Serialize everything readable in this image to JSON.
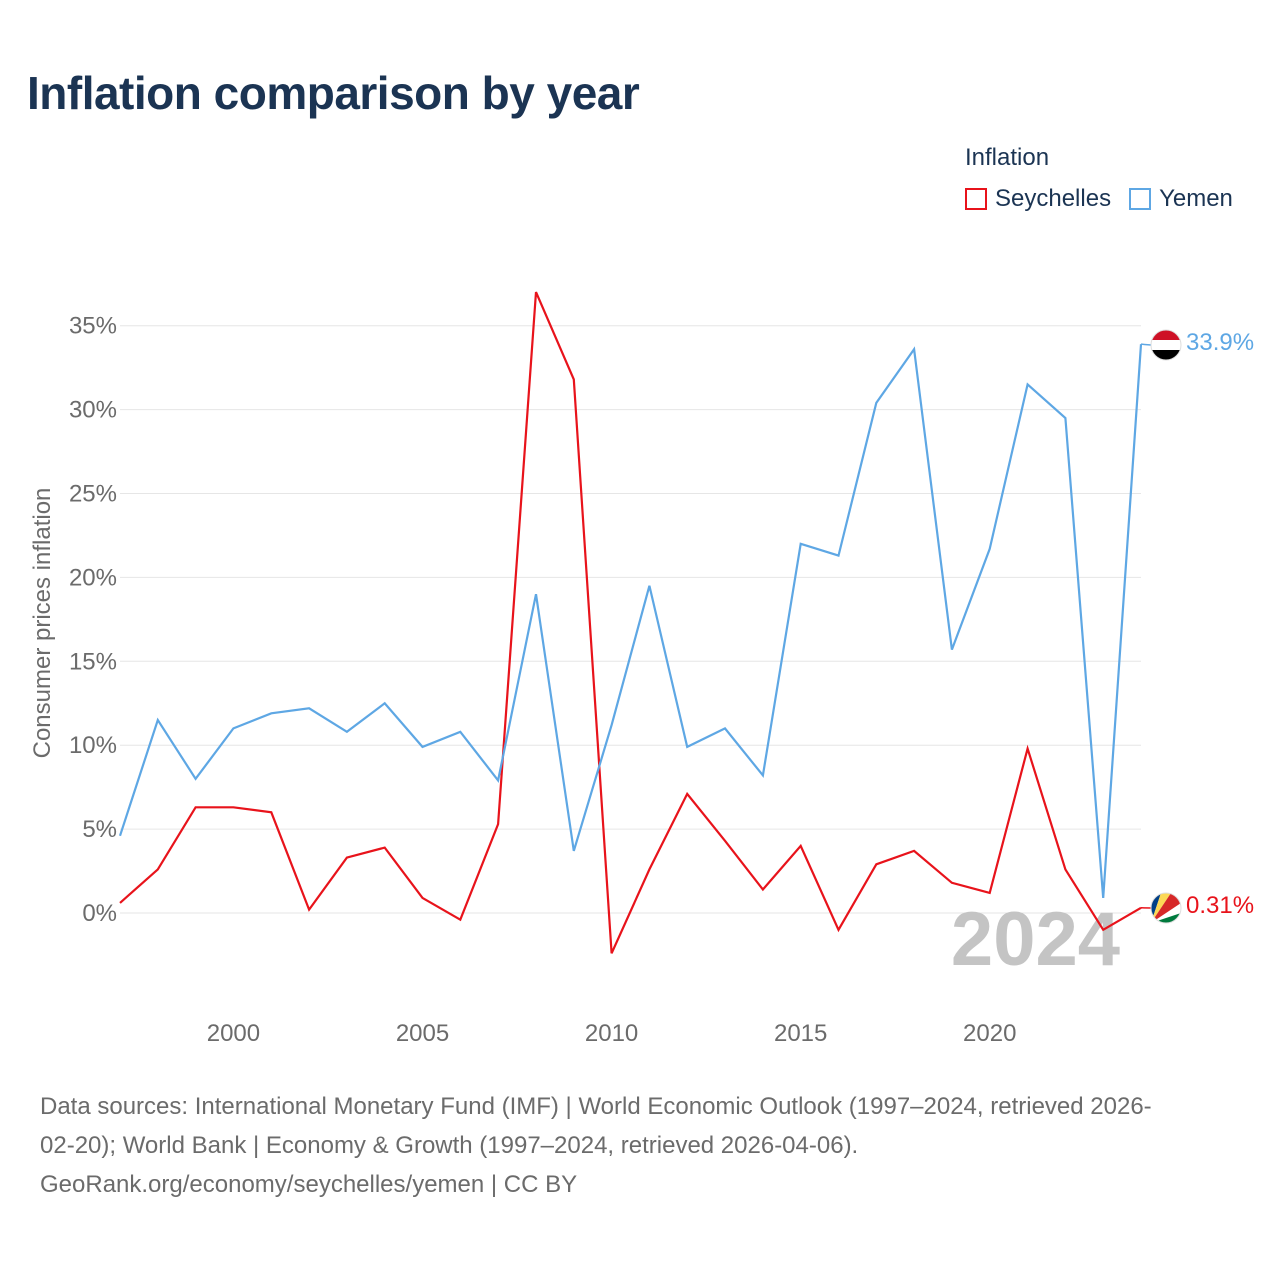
{
  "title": "Inflation comparison by year",
  "legend": {
    "title": "Inflation",
    "items": [
      {
        "label": "Seychelles",
        "color": "#e8131b"
      },
      {
        "label": "Yemen",
        "color": "#5ea7e4"
      }
    ]
  },
  "chart_data": {
    "type": "line",
    "title": "Inflation comparison by year",
    "xlabel": "",
    "ylabel": "Consumer prices inflation",
    "xlim": [
      1997,
      2024
    ],
    "ylim": [
      -5,
      37
    ],
    "x_ticks": [
      2000,
      2005,
      2010,
      2015,
      2020
    ],
    "x_tick_labels": [
      "2000",
      "2005",
      "2010",
      "2015",
      "2020"
    ],
    "y_ticks": [
      0,
      5,
      10,
      15,
      20,
      25,
      30,
      35
    ],
    "y_tick_labels": [
      "0%",
      "5%",
      "10%",
      "15%",
      "20%",
      "25%",
      "30%",
      "35%"
    ],
    "grid": true,
    "watermark_year": "2024",
    "x": [
      1997,
      1998,
      1999,
      2000,
      2001,
      2002,
      2003,
      2004,
      2005,
      2006,
      2007,
      2008,
      2009,
      2010,
      2011,
      2012,
      2013,
      2014,
      2015,
      2016,
      2017,
      2018,
      2019,
      2020,
      2021,
      2022,
      2023,
      2024
    ],
    "series": [
      {
        "name": "Seychelles",
        "color": "#e8131b",
        "end_label": "0.31%",
        "flag_icon": "seychelles-flag-icon",
        "values": [
          0.6,
          2.6,
          6.3,
          6.3,
          6.0,
          0.2,
          3.3,
          3.9,
          0.9,
          -0.4,
          5.3,
          37.0,
          31.8,
          -2.4,
          2.6,
          7.1,
          4.3,
          1.4,
          4.0,
          -1.0,
          2.9,
          3.7,
          1.8,
          1.2,
          9.8,
          2.6,
          -1.0,
          0.31
        ]
      },
      {
        "name": "Yemen",
        "color": "#5ea7e4",
        "end_label": "33.9%",
        "flag_icon": "yemen-flag-icon",
        "values": [
          4.6,
          11.5,
          8.0,
          11.0,
          11.9,
          12.2,
          10.8,
          12.5,
          9.9,
          10.8,
          7.9,
          19.0,
          3.7,
          11.2,
          19.5,
          9.9,
          11.0,
          8.2,
          22.0,
          21.3,
          30.4,
          33.6,
          15.7,
          21.7,
          31.5,
          29.5,
          0.9,
          33.9
        ]
      }
    ]
  },
  "footer": {
    "line1": "Data sources: International Monetary Fund (IMF) | World Economic Outlook (1997–2024, retrieved 2026-",
    "line2": "02-20); World Bank | Economy & Growth (1997–2024, retrieved 2026-04-06).",
    "line3": "GeoRank.org/economy/seychelles/yemen | CC BY"
  }
}
